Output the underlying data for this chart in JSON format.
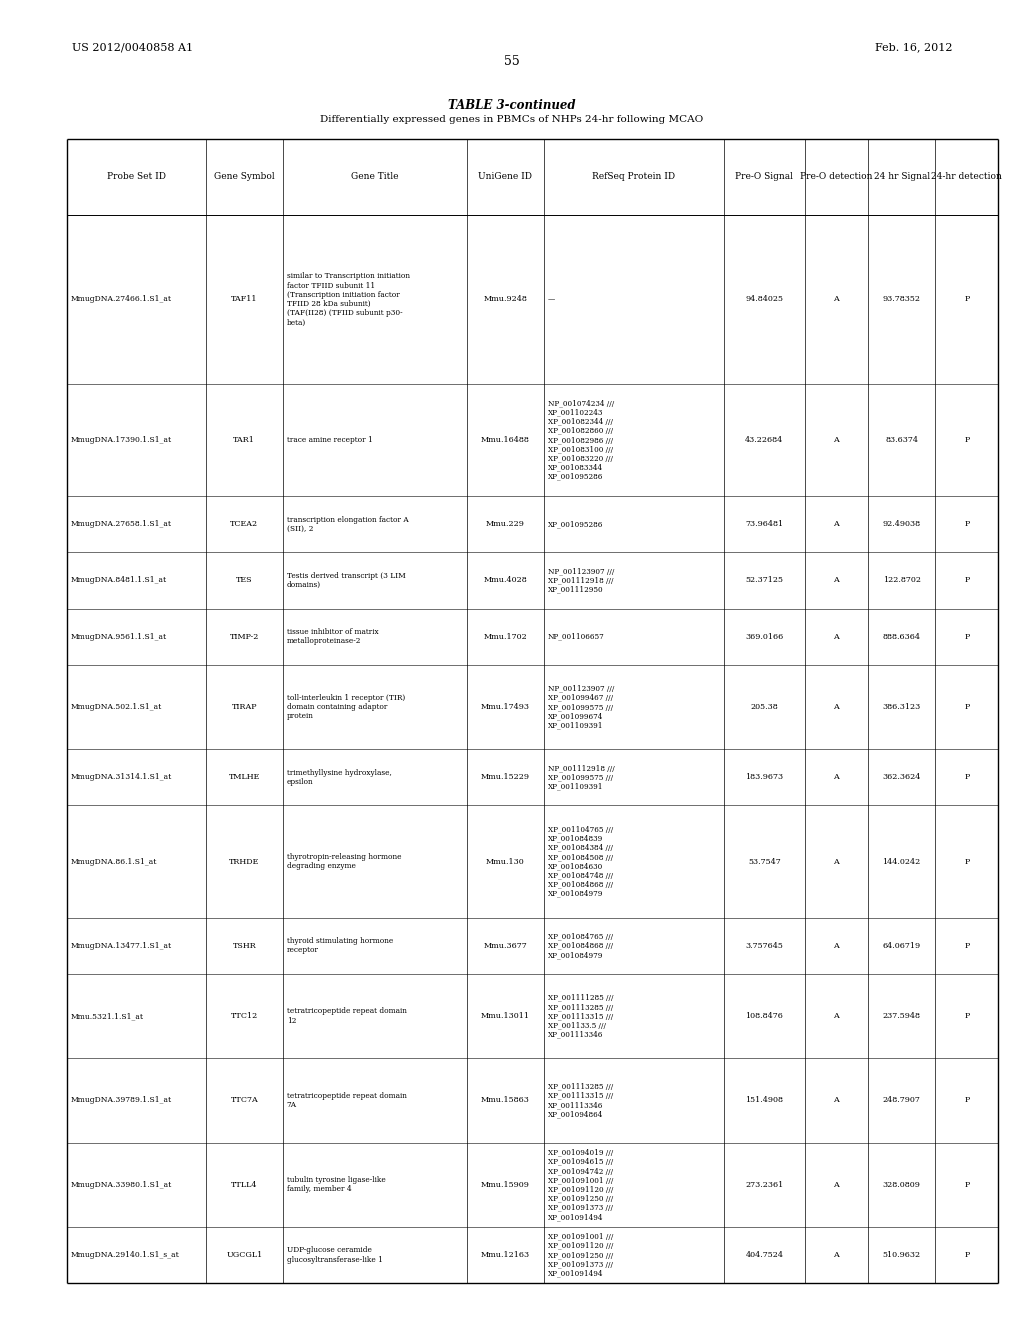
{
  "header_left": "US 2012/0040858 A1",
  "header_right": "Feb. 16, 2012",
  "page_number": "55",
  "table_title": "TABLE 3-continued",
  "table_subtitle": "Differentially expressed genes in PBMCs of NHPs 24-hr following MCAO",
  "col_headers": [
    "Probe Set ID",
    "Gene Symbol",
    "Gene Title",
    "UniGene ID",
    "RefSeq Protein ID",
    "Pre-O Signal",
    "Pre-O detection",
    "24 hr Signal",
    "24-hr detection"
  ],
  "rows": [
    {
      "probe_set_id": "MmugDNA.27466.1.S1_at",
      "gene_symbol": "TAF11",
      "gene_title": "similar to Transcription initiation\nfactor TFIID subunit 11\n(Transcription initiation factor\nTFIID 28 kDa subunit)\n(TAF(II28) (TFIID subunit p30-\nbeta)",
      "unigene_id": "Mmu.9248",
      "refseq_protein_id": "—",
      "pre_o_signal": "94.84025",
      "pre_o_detection": "A",
      "hr24_signal": "93.78352",
      "hr24_detection": "P"
    },
    {
      "probe_set_id": "MmugDNA.17390.1.S1_at",
      "gene_symbol": "TAR1",
      "gene_title": "trace amine receptor 1",
      "unigene_id": "Mmu.16488",
      "refseq_protein_id": "NP_001074234 ///\nXP_001102243\nXP_001082344 ///\nXP_001082860 ///\nXP_001082986 ///\nXP_001083100 ///\nXP_001083220 ///\nXP_001083344\nXP_001095286",
      "pre_o_signal": "43.22684",
      "pre_o_detection": "A",
      "hr24_signal": "83.6374",
      "hr24_detection": "P"
    },
    {
      "probe_set_id": "MmugDNA.27658.1.S1_at",
      "gene_symbol": "TCEA2",
      "gene_title": "transcription elongation factor A\n(SII), 2",
      "unigene_id": "Mmu.229",
      "refseq_protein_id": "XP_001095286",
      "pre_o_signal": "73.96481",
      "pre_o_detection": "A",
      "hr24_signal": "92.49038",
      "hr24_detection": "P"
    },
    {
      "probe_set_id": "MmugDNA.8481.1.S1_at",
      "gene_symbol": "TES",
      "gene_title": "Testis derived transcript (3 LIM\ndomains)",
      "unigene_id": "Mmu.4028",
      "refseq_protein_id": "NP_001123907 ///\nXP_001112918 ///\nXP_001112950",
      "pre_o_signal": "52.37125",
      "pre_o_detection": "A",
      "hr24_signal": "122.8702",
      "hr24_detection": "P"
    },
    {
      "probe_set_id": "MmugDNA.9561.1.S1_at",
      "gene_symbol": "TIMP-2",
      "gene_title": "tissue inhibitor of matrix\nmetalloproteinase-2",
      "unigene_id": "Mmu.1702",
      "refseq_protein_id": "NP_001106657",
      "pre_o_signal": "369.0166",
      "pre_o_detection": "A",
      "hr24_signal": "888.6364",
      "hr24_detection": "P"
    },
    {
      "probe_set_id": "MmugDNA.502.1.S1_at",
      "gene_symbol": "TIRAP",
      "gene_title": "toll-interleukin 1 receptor (TIR)\ndomain containing adaptor\nprotein",
      "unigene_id": "Mmu.17493",
      "refseq_protein_id": "NP_001123907 ///\nXP_001099467 ///\nXP_001099575 ///\nXP_001099674\nXP_001109391",
      "pre_o_signal": "205.38",
      "pre_o_detection": "A",
      "hr24_signal": "386.3123",
      "hr24_detection": "P"
    },
    {
      "probe_set_id": "MmugDNA.31314.1.S1_at",
      "gene_symbol": "TMLHE",
      "gene_title": "trimethyllysine hydroxylase,\nepsilon",
      "unigene_id": "Mmu.15229",
      "refseq_protein_id": "NP_001112918 ///\nXP_001099575 ///\nXP_001109391",
      "pre_o_signal": "183.9673",
      "pre_o_detection": "A",
      "hr24_signal": "362.3624",
      "hr24_detection": "P"
    },
    {
      "probe_set_id": "MmugDNA.86.1.S1_at",
      "gene_symbol": "TRHDE",
      "gene_title": "thyrotropin-releasing hormone\ndegrading enzyme",
      "unigene_id": "Mmu.130",
      "refseq_protein_id": "XP_001104765 ///\nXP_001084839\nXP_001084384 ///\nXP_001084508 ///\nXP_001084630\nXP_001084748 ///\nXP_001084868 ///\nXP_001084979",
      "pre_o_signal": "53.7547",
      "pre_o_detection": "A",
      "hr24_signal": "144.0242",
      "hr24_detection": "P"
    },
    {
      "probe_set_id": "MmugDNA.13477.1.S1_at",
      "gene_symbol": "TSHR",
      "gene_title": "thyroid stimulating hormone\nreceptor",
      "unigene_id": "Mmu.3677",
      "refseq_protein_id": "XP_001084765 ///\nXP_001084868 ///\nXP_001084979",
      "pre_o_signal": "3.757645",
      "pre_o_detection": "A",
      "hr24_signal": "64.06719",
      "hr24_detection": "P"
    },
    {
      "probe_set_id": "Mmu.5321.1.S1_at",
      "gene_symbol": "TTC12",
      "gene_title": "tetratricopeptide repeat domain\n12",
      "unigene_id": "Mmu.13011",
      "refseq_protein_id": "XP_001111285 ///\nXP_001113285 ///\nXP_001113315 ///\nXP_001133.5 ///\nXP_001113346",
      "pre_o_signal": "108.8476",
      "pre_o_detection": "A",
      "hr24_signal": "237.5948",
      "hr24_detection": "P"
    },
    {
      "probe_set_id": "MmugDNA.39789.1.S1_at",
      "gene_symbol": "TTC7A",
      "gene_title": "tetratricopeptide repeat domain\n7A",
      "unigene_id": "Mmu.15863",
      "refseq_protein_id": "XP_001113285 ///\nXP_001113315 ///\nXP_001113346\nXP_001094864",
      "pre_o_signal": "151.4908",
      "pre_o_detection": "A",
      "hr24_signal": "248.7907",
      "hr24_detection": "P"
    },
    {
      "probe_set_id": "MmugDNA.33980.1.S1_at",
      "gene_symbol": "TTLL4",
      "gene_title": "tubulin tyrosine ligase-like\nfamily, member 4",
      "unigene_id": "Mmu.15909",
      "refseq_protein_id": "XP_001094019 ///\nXP_001094615 ///\nXP_001094742 ///\nXP_001091001 ///\nXP_001091120 ///\nXP_001091250 ///\nXP_001091373 ///\nXP_001091494",
      "pre_o_signal": "273.2361",
      "pre_o_detection": "A",
      "hr24_signal": "328.0809",
      "hr24_detection": "P"
    },
    {
      "probe_set_id": "MmugDNA.29140.1.S1_s_at",
      "gene_symbol": "UGCGL1",
      "gene_title": "UDP-glucose ceramide\nglucosyltransferase-like 1",
      "unigene_id": "Mmu.12163",
      "refseq_protein_id": "XP_001091001 ///\nXP_001091120 ///\nXP_001091250 ///\nXP_001091373 ///\nXP_001091494",
      "pre_o_signal": "404.7524",
      "pre_o_detection": "A",
      "hr24_signal": "510.9632",
      "hr24_detection": "P"
    }
  ],
  "bg_color": "#ffffff",
  "text_color": "#000000",
  "line_color": "#000000"
}
